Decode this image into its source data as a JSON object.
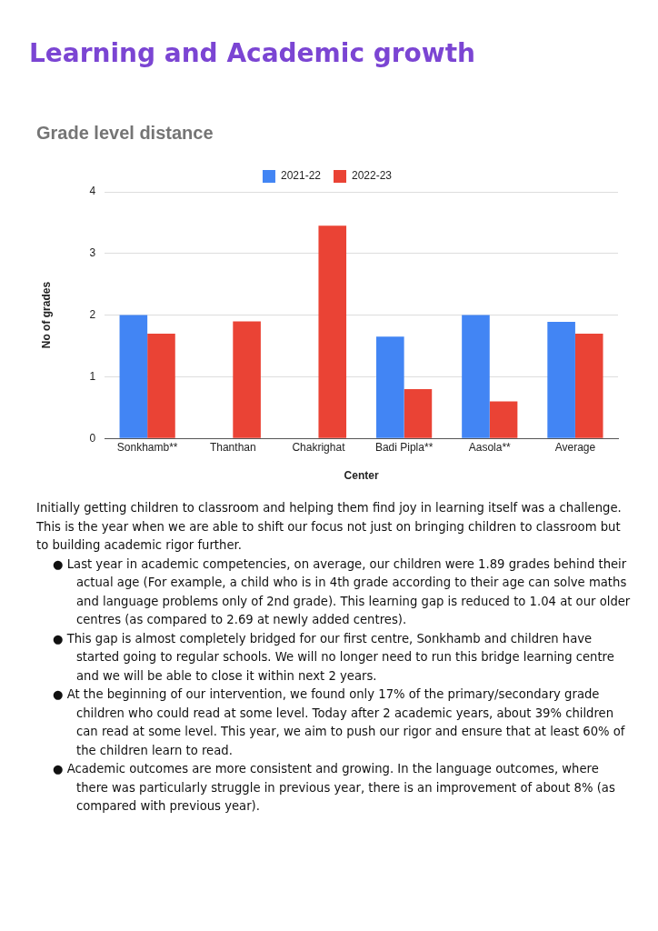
{
  "chart_data": {
    "type": "bar",
    "title": "Learning and Academic growth",
    "subtitle": "Grade level distance",
    "xlabel": "Center",
    "ylabel": "No of grades",
    "categories": [
      "Sonkhamb**",
      "Thanthan",
      "Chakrighat",
      "Badi Pipla**",
      "Aasola**",
      "Average"
    ],
    "series": [
      {
        "name": "2021-22",
        "color": "#4285f4",
        "values": [
          2.0,
          null,
          null,
          1.65,
          2.0,
          1.89
        ]
      },
      {
        "name": "2022-23",
        "color": "#ea4335",
        "values": [
          1.7,
          1.9,
          3.45,
          0.8,
          0.6,
          1.7
        ]
      }
    ],
    "ylim": [
      0,
      4
    ],
    "yticks": [
      0,
      1,
      2,
      3,
      4
    ],
    "grid": "y",
    "legend": "top",
    "annotations": [
      "Initially getting children to classroom and helping them find joy in learning itself was a challenge. This is the year when we are able to shift our focus not just on bringing children to classroom but to building academic rigor further.",
      "● Last year in academic competencies, on average, our children were 1.89 grades behind their actual age (For example, a child who is in 4th grade according to their age can solve maths and language problems only of 2nd grade). This learning gap is reduced to 1.04 at our older centres (as compared to 2.69 at newly added centres).",
      "● This gap is almost completely bridged for our first centre, Sonkhamb and children have started going to regular schools. We will no longer need to run this bridge learning centre and we will be able to close it within next 2 years.",
      "● At the beginning of our intervention, we found only 17% of the primary/secondary grade children who could read at some level. Today after 2 academic years, about 39% children can read at some level. This year, we aim to push our rigor and ensure that at least 60% of the children learn to read.",
      "● Academic outcomes are more consistent and growing. In the language outcomes, where there was particularly struggle in previous year, there is an improvement of about 8% (as compared with previous year)."
    ]
  }
}
